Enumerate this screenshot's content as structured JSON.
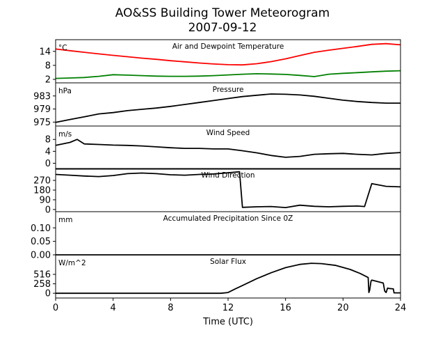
{
  "figure": {
    "title_line1": "AO&SS Building Tower Meteorogram",
    "title_line2": "2007-09-12",
    "xlabel": "Time (UTC)"
  },
  "chart_data": {
    "type": "line",
    "x_unit": "hours UTC",
    "xlim": [
      0,
      24
    ],
    "x_ticks": [
      0,
      4,
      8,
      12,
      16,
      20,
      24
    ],
    "panels": [
      {
        "id": "temp",
        "title": "Air and Dewpoint Temperature",
        "unit_label": "°C",
        "ylim": [
          0.5,
          19
        ],
        "y_ticks": [
          2,
          8,
          14
        ],
        "series": [
          {
            "name": "Air Temperature",
            "color": "#ff0000",
            "x": [
              0,
              1,
              2,
              3,
              4,
              5,
              6,
              7,
              8,
              9,
              10,
              11,
              12,
              13,
              14,
              15,
              16,
              17,
              18,
              19,
              20,
              21,
              22,
              23,
              24
            ],
            "y": [
              15.0,
              14.3,
              13.6,
              12.9,
              12.3,
              11.7,
              11.1,
              10.6,
              10.0,
              9.5,
              9.0,
              8.6,
              8.3,
              8.2,
              8.7,
              9.6,
              10.8,
              12.2,
              13.6,
              14.5,
              15.3,
              16.1,
              17.0,
              17.3,
              16.8
            ]
          },
          {
            "name": "Dewpoint Temperature",
            "color": "#008000",
            "x": [
              0,
              1,
              2,
              3,
              4,
              5,
              6,
              7,
              8,
              9,
              10,
              11,
              12,
              13,
              14,
              15,
              16,
              17,
              18,
              19,
              20,
              21,
              22,
              23,
              24
            ],
            "y": [
              2.4,
              2.6,
              2.8,
              3.3,
              4.0,
              3.8,
              3.6,
              3.4,
              3.3,
              3.3,
              3.4,
              3.6,
              3.9,
              4.2,
              4.4,
              4.3,
              4.1,
              3.7,
              3.2,
              4.2,
              4.6,
              4.9,
              5.2,
              5.5,
              5.7
            ]
          }
        ]
      },
      {
        "id": "pressure",
        "title": "Pressure",
        "unit_label": "hPa",
        "ylim": [
          973.8,
          987.0
        ],
        "y_ticks": [
          975,
          979,
          983
        ],
        "series": [
          {
            "name": "Pressure",
            "color": "#000000",
            "x": [
              0,
              1,
              2,
              3,
              4,
              5,
              6,
              7,
              8,
              9,
              10,
              11,
              12,
              13,
              14,
              15,
              16,
              17,
              18,
              19,
              20,
              21,
              22,
              23,
              24
            ],
            "y": [
              974.9,
              975.8,
              976.6,
              977.5,
              977.9,
              978.5,
              978.9,
              979.3,
              979.8,
              980.4,
              981.0,
              981.6,
              982.2,
              982.8,
              983.2,
              983.6,
              983.5,
              983.3,
              982.9,
              982.3,
              981.7,
              981.3,
              981.0,
              980.8,
              980.8
            ]
          }
        ]
      },
      {
        "id": "wind_speed",
        "title": "Wind Speed",
        "unit_label": "m/s",
        "ylim": [
          -2,
          12.5
        ],
        "y_ticks": [
          0,
          4,
          8
        ],
        "series": [
          {
            "name": "Wind Speed",
            "color": "#000000",
            "x": [
              0,
              1,
              1.5,
              2,
              3,
              4,
              5,
              6,
              7,
              8,
              9,
              10,
              11,
              12,
              13,
              14,
              15,
              16,
              17,
              18,
              19,
              20,
              21,
              22,
              23,
              24
            ],
            "y": [
              6.0,
              7.0,
              8.0,
              6.5,
              6.3,
              6.1,
              6.0,
              5.8,
              5.5,
              5.2,
              5.0,
              5.0,
              4.8,
              4.8,
              4.2,
              3.5,
              2.6,
              2.0,
              2.3,
              3.0,
              3.2,
              3.3,
              3.0,
              2.8,
              3.3,
              3.6
            ]
          }
        ]
      },
      {
        "id": "wind_dir",
        "title": "Wind Direction",
        "unit_label": "",
        "ylim": [
          -20,
          380
        ],
        "y_ticks": [
          0,
          90,
          180,
          270
        ],
        "series": [
          {
            "name": "Wind Direction",
            "color": "#000000",
            "x": [
              0,
              1,
              2,
              3,
              4,
              5,
              6,
              7,
              8,
              9,
              10,
              11,
              12,
              12.8,
              13,
              14,
              15,
              16,
              17,
              18,
              19,
              20,
              21,
              21.5,
              22,
              23,
              24
            ],
            "y": [
              325,
              318,
              310,
              305,
              315,
              332,
              338,
              332,
              322,
              318,
              325,
              330,
              340,
              350,
              20,
              25,
              28,
              18,
              40,
              30,
              25,
              30,
              32,
              28,
              240,
              215,
              210
            ]
          }
        ]
      },
      {
        "id": "precip",
        "title": "Accumulated Precipitation Since 0Z",
        "unit_label": "mm",
        "ylim": [
          0,
          0.16
        ],
        "y_ticks": [
          0.0,
          0.05,
          0.1
        ],
        "series": [
          {
            "name": "Accumulated Precipitation",
            "color": "#000000",
            "x": [
              0,
              24
            ],
            "y": [
              0,
              0
            ]
          }
        ]
      },
      {
        "id": "solar",
        "title": "Solar Flux",
        "unit_label": "W/m^2",
        "ylim": [
          -130,
          1050
        ],
        "y_ticks": [
          0,
          258,
          516
        ],
        "series": [
          {
            "name": "Solar Flux",
            "color": "#000000",
            "x": [
              0,
              11.5,
              12,
              12.5,
              13,
              14,
              15,
              16,
              17,
              17.8,
              18.5,
              19.5,
              20.5,
              21.2,
              21.75,
              21.8,
              21.85,
              21.95,
              22.0,
              22.8,
              22.9,
              23.0,
              23.1,
              23.2,
              23.5,
              23.55,
              24
            ],
            "y": [
              0,
              0,
              20,
              120,
              210,
              400,
              560,
              700,
              790,
              820,
              810,
              760,
              650,
              540,
              430,
              20,
              80,
              330,
              360,
              280,
              60,
              20,
              140,
              130,
              120,
              10,
              10
            ]
          }
        ]
      }
    ]
  }
}
